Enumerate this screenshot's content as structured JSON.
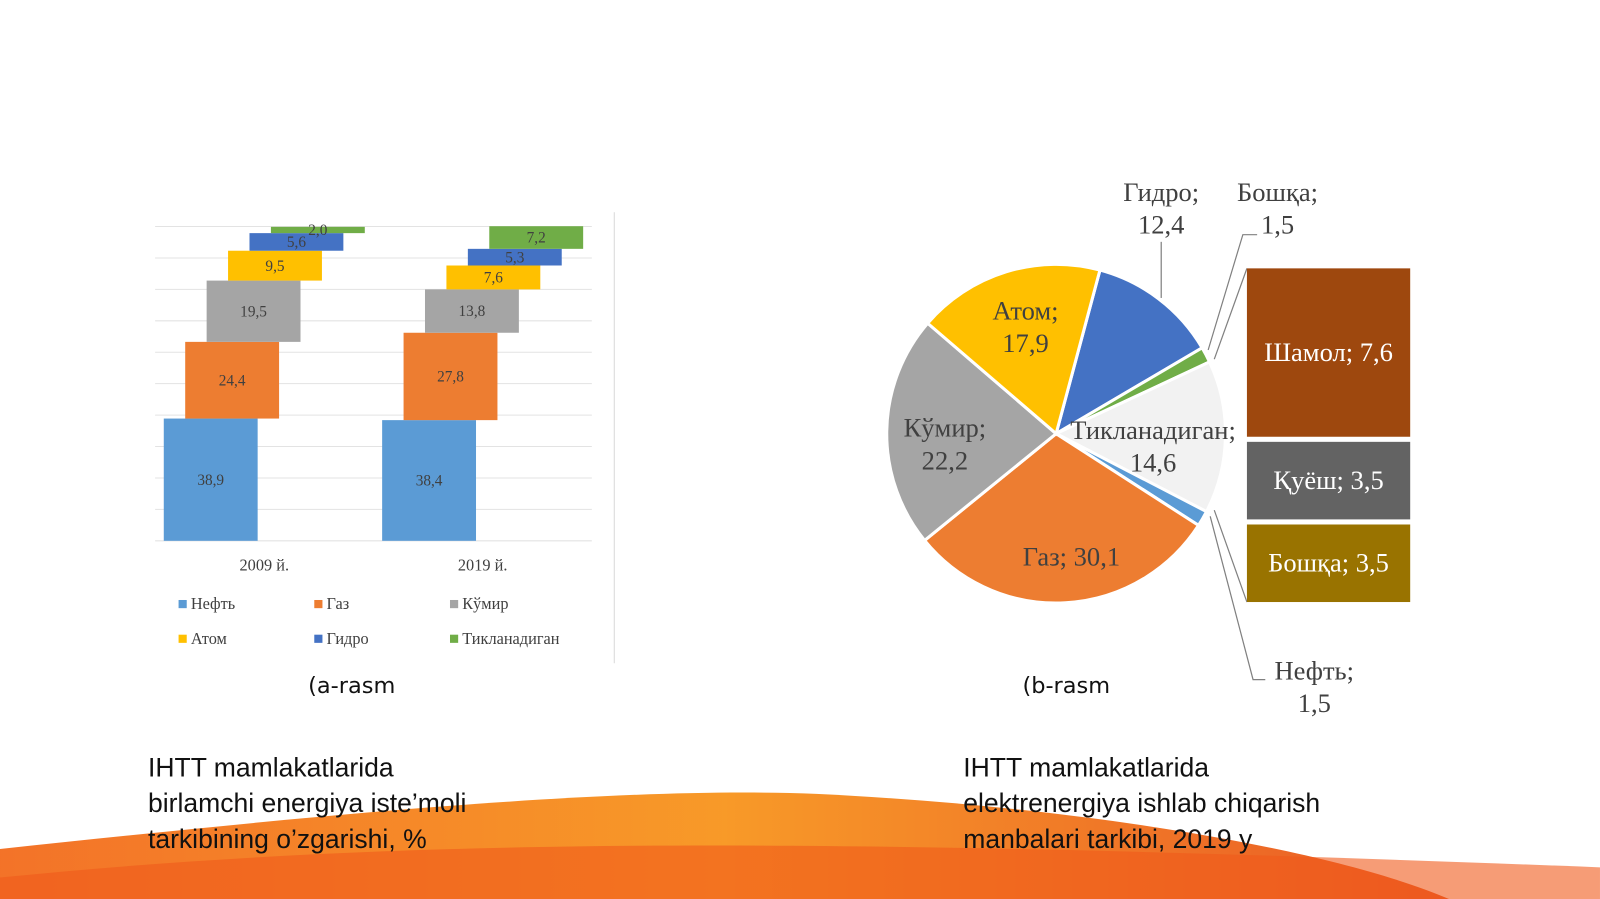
{
  "chart_data": [
    {
      "type": "stacked-bar",
      "categories": [
        "2009 й.",
        "2019 й."
      ],
      "series": [
        {
          "name": "Нефть",
          "color": "#5b9bd5",
          "values": [
            38.9,
            38.4
          ],
          "value_labels": [
            "38,9",
            "38,4"
          ]
        },
        {
          "name": "Газ",
          "color": "#ed7d31",
          "values": [
            24.4,
            27.8
          ],
          "value_labels": [
            "24,4",
            "27,8"
          ]
        },
        {
          "name": "Кўмир",
          "color": "#a5a5a5",
          "values": [
            19.5,
            13.8
          ],
          "value_labels": [
            "19,5",
            "13,8"
          ]
        },
        {
          "name": "Атом",
          "color": "#ffc000",
          "values": [
            9.5,
            7.6
          ],
          "value_labels": [
            "9,5",
            "7,6"
          ]
        },
        {
          "name": "Гидро",
          "color": "#4472c4",
          "values": [
            5.6,
            5.3
          ],
          "value_labels": [
            "5,6",
            "5,3"
          ]
        },
        {
          "name": "Тикланадиган",
          "color": "#70ad47",
          "values": [
            2.0,
            7.2
          ],
          "value_labels": [
            "2,0",
            "7,2"
          ]
        }
      ],
      "ylim": [
        0,
        100
      ],
      "yticks": [
        0,
        10,
        20,
        30,
        40,
        50,
        60,
        70,
        80,
        90,
        100
      ],
      "grid": true,
      "legend": "bottom"
    },
    {
      "type": "bar-of-pie",
      "values": [
        12.4,
        1.5,
        14.6,
        1.5,
        30.1,
        22.2,
        17.9
      ],
      "value_labels": [
        "Гидро;\n12,4",
        "Бошқа;\n1,5",
        "Тикланадиган;\n14,6",
        "Нефть;\n1,5",
        "Газ; 30,1",
        "Кўмир;\n22,2",
        "Атом;\n17,9"
      ],
      "colors": [
        "#4472c4",
        "#70ad47",
        "#f2f2f2",
        "#5b9bd5",
        "#ed7d31",
        "#a5a5a5",
        "#ffc000"
      ],
      "bar_values": [
        7.6,
        3.5,
        3.5
      ],
      "bar_value_labels": [
        "Шамол; 7,6",
        "Қуёш; 3,5",
        "Бошқа; 3,5"
      ],
      "bar_colors": [
        "#9e480e",
        "#636363",
        "#997300"
      ]
    }
  ],
  "captions": [
    {
      "tag": "(a-rasm",
      "lines": [
        "IHTT mamlakatlarida",
        "birlamchi energiya iste’moli",
        "tarkibining o’zgarishi, %"
      ]
    },
    {
      "tag": "(b-rasm",
      "lines": [
        "IHTT mamlakatlarida",
        "elektrenergiya ishlab chiqarish",
        "manbalari tarkibi, 2019 y"
      ]
    }
  ]
}
